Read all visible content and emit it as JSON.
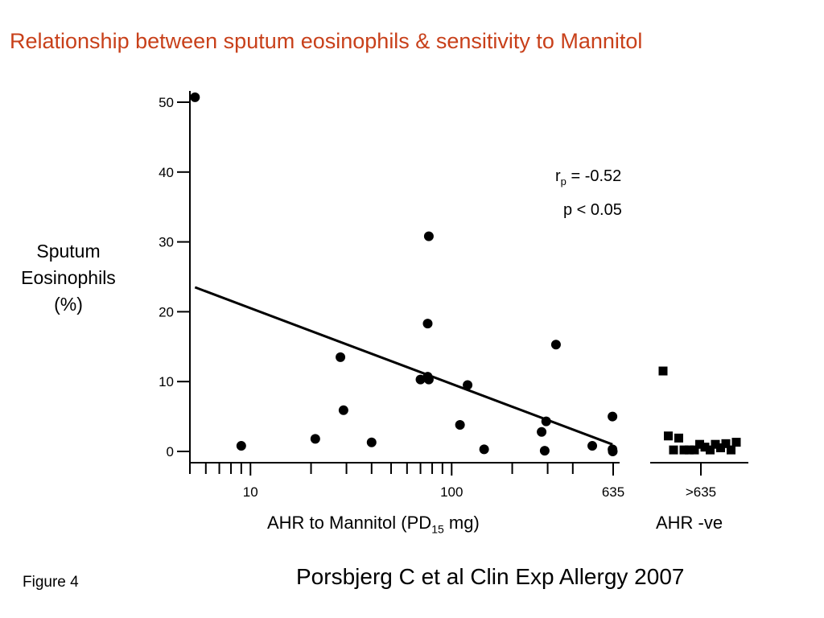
{
  "title": "Relationship between sputum eosinophils & sensitivity to Mannitol",
  "ylabel": [
    "Sputum",
    "Eosinophils",
    "(%)"
  ],
  "stats": {
    "r_main": "r",
    "r_sub": "p",
    "r_value": " = -0.52",
    "p_text": "p < 0.05"
  },
  "xlabel": {
    "prefix": "AHR to Mannitol (PD",
    "sub": "15",
    "suffix": " mg)"
  },
  "xlabel_right": "AHR -ve",
  "figure_label": "Figure 4",
  "citation": "Porsbjerg C et al Clin Exp Allergy 2007",
  "chart_data": {
    "type": "scatter",
    "x_scale": "log",
    "xlim": [
      5,
      635
    ],
    "ylim": [
      0,
      50
    ],
    "y_ticks": [
      0,
      10,
      20,
      30,
      40,
      50
    ],
    "y_tick_labels": [
      "0",
      "10",
      "20",
      "30",
      "40",
      "50"
    ],
    "x_major_ticks": [
      10,
      100,
      635
    ],
    "x_tick_labels": [
      "10",
      "100",
      "635"
    ],
    "x_minor_ticks": [
      5,
      6,
      7,
      8,
      9,
      20,
      30,
      40,
      50,
      60,
      70,
      80,
      90,
      200,
      300,
      400
    ],
    "series": [
      {
        "marker": "circle",
        "points": [
          [
            5.3,
            50.7
          ],
          [
            9,
            0.8
          ],
          [
            21,
            1.8
          ],
          [
            28,
            13.5
          ],
          [
            29,
            5.9
          ],
          [
            40,
            1.3
          ],
          [
            70,
            10.3
          ],
          [
            76,
            10.7
          ],
          [
            77,
            10.3
          ],
          [
            76,
            18.3
          ],
          [
            77,
            30.8
          ],
          [
            110,
            3.8
          ],
          [
            120,
            9.5
          ],
          [
            145,
            0.3
          ],
          [
            280,
            2.8
          ],
          [
            295,
            4.3
          ],
          [
            290,
            0.1
          ],
          [
            330,
            15.3
          ],
          [
            500,
            0.8
          ],
          [
            630,
            5.0
          ],
          [
            630,
            0.3
          ],
          [
            632,
            0
          ]
        ]
      }
    ],
    "regression_line": {
      "x": [
        5.3,
        630
      ],
      "y": [
        23.5,
        1.0
      ]
    },
    "right_panel": {
      "tick_label": ">635",
      "marker": "square",
      "values": [
        11.4,
        2.1,
        0.1,
        1.8,
        0.1,
        0.1,
        0.1,
        0.9,
        0.5,
        0.1,
        0.9,
        0.4,
        1.0,
        0.1,
        1.2
      ]
    }
  }
}
